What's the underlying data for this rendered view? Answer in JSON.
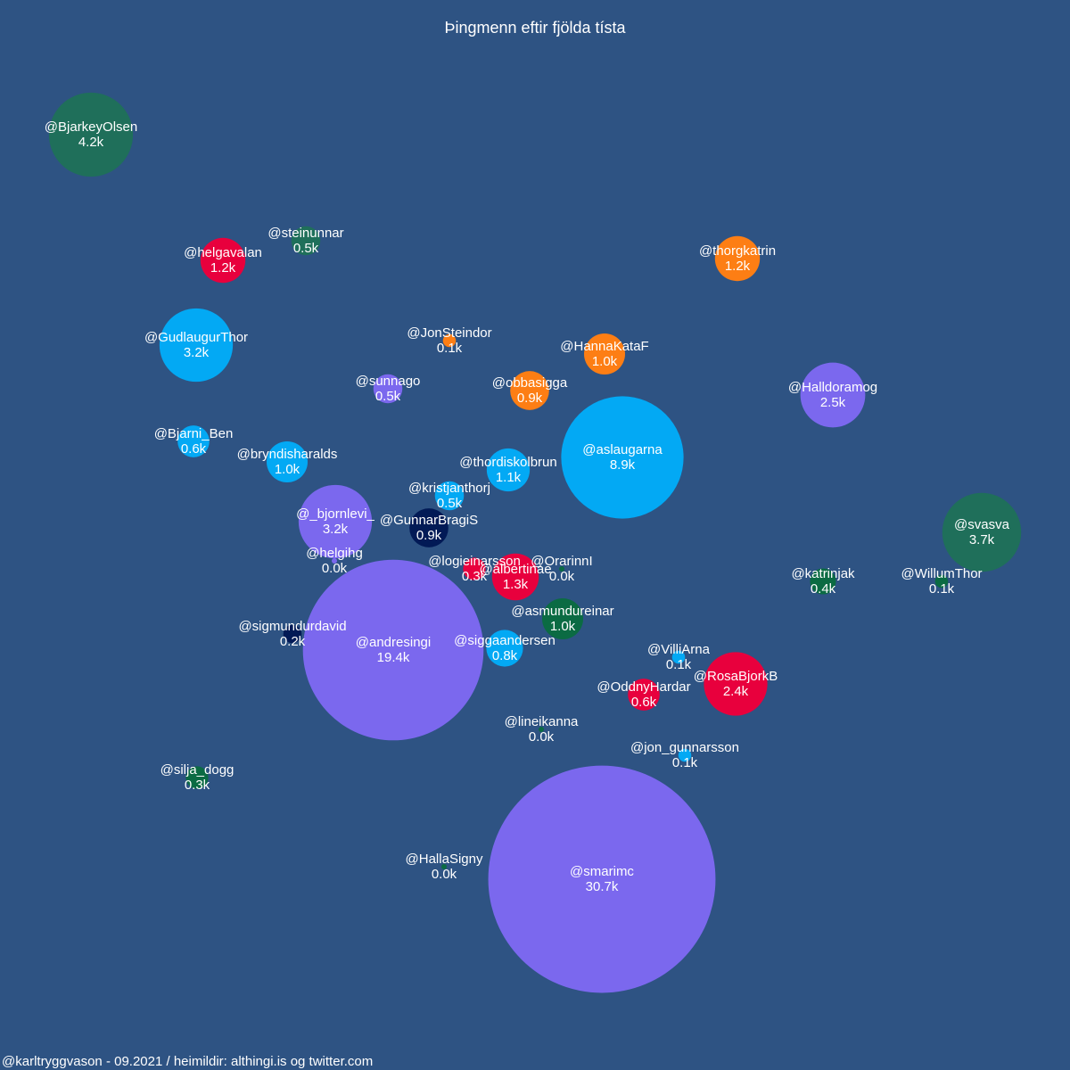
{
  "title": "Þingmenn eftir fjölda tísta",
  "footer": "@karltryggvason - 09.2021 / heimildir: althingi.is og twitter.com",
  "colors": {
    "background": "#2e5383",
    "purple": "#7b68ee",
    "light_blue": "#03a9f4",
    "dark_green": "#1f6f5a",
    "green": "#0b6b43",
    "red": "#e8003d",
    "orange": "#fd7e14",
    "navy": "#021a56"
  },
  "chart_data": {
    "type": "bubble",
    "title": "Þingmenn eftir fjölda tísta",
    "value_unit": "k",
    "points": [
      {
        "handle": "@BjarkeyOlsen",
        "value": 4.2,
        "label": "4.2k",
        "color": "dark_green"
      },
      {
        "handle": "@steinunnar",
        "value": 0.5,
        "label": "0.5k",
        "color": "dark_green"
      },
      {
        "handle": "@helgavalan",
        "value": 1.2,
        "label": "1.2k",
        "color": "red"
      },
      {
        "handle": "@thorgkatrin",
        "value": 1.2,
        "label": "1.2k",
        "color": "orange"
      },
      {
        "handle": "@GudlaugurThor",
        "value": 3.2,
        "label": "3.2k",
        "color": "light_blue"
      },
      {
        "handle": "@JonSteindor",
        "value": 0.1,
        "label": "0.1k",
        "color": "orange"
      },
      {
        "handle": "@HannaKataF",
        "value": 1.0,
        "label": "1.0k",
        "color": "orange"
      },
      {
        "handle": "@sunnago",
        "value": 0.5,
        "label": "0.5k",
        "color": "purple"
      },
      {
        "handle": "@obbasigga",
        "value": 0.9,
        "label": "0.9k",
        "color": "orange"
      },
      {
        "handle": "@Halldoramog",
        "value": 2.5,
        "label": "2.5k",
        "color": "purple"
      },
      {
        "handle": "@Bjarni_Ben",
        "value": 0.6,
        "label": "0.6k",
        "color": "light_blue"
      },
      {
        "handle": "@bryndisharalds",
        "value": 1.0,
        "label": "1.0k",
        "color": "light_blue"
      },
      {
        "handle": "@aslaugarna",
        "value": 8.9,
        "label": "8.9k",
        "color": "light_blue"
      },
      {
        "handle": "@thordiskolbrun",
        "value": 1.1,
        "label": "1.1k",
        "color": "light_blue"
      },
      {
        "handle": "@kristjanthorj",
        "value": 0.5,
        "label": "0.5k",
        "color": "light_blue"
      },
      {
        "handle": "@_bjornlevi_",
        "value": 3.2,
        "label": "3.2k",
        "color": "purple"
      },
      {
        "handle": "@GunnarBragiS",
        "value": 0.9,
        "label": "0.9k",
        "color": "navy"
      },
      {
        "handle": "@svasva",
        "value": 3.7,
        "label": "3.7k",
        "color": "dark_green"
      },
      {
        "handle": "@helgihg",
        "value": 0.0,
        "label": "0.0k",
        "color": "purple"
      },
      {
        "handle": "@logieinarsson",
        "value": 0.3,
        "label": "0.3k",
        "color": "red"
      },
      {
        "handle": "@albertinae",
        "value": 1.3,
        "label": "1.3k",
        "color": "red"
      },
      {
        "handle": "@OrarinnI",
        "value": 0.0,
        "label": "0.0k",
        "color": "green"
      },
      {
        "handle": "@katrinjak",
        "value": 0.4,
        "label": "0.4k",
        "color": "green"
      },
      {
        "handle": "@WillumThor",
        "value": 0.1,
        "label": "0.1k",
        "color": "green"
      },
      {
        "handle": "@asmundureinar",
        "value": 1.0,
        "label": "1.0k",
        "color": "green"
      },
      {
        "handle": "@sigmundurdavid",
        "value": 0.2,
        "label": "0.2k",
        "color": "navy"
      },
      {
        "handle": "@andresingi",
        "value": 19.4,
        "label": "19.4k",
        "color": "purple"
      },
      {
        "handle": "@siggaandersen",
        "value": 0.8,
        "label": "0.8k",
        "color": "light_blue"
      },
      {
        "handle": "@VilliArna",
        "value": 0.1,
        "label": "0.1k",
        "color": "light_blue"
      },
      {
        "handle": "@RosaBjorkB",
        "value": 2.4,
        "label": "2.4k",
        "color": "red"
      },
      {
        "handle": "@OddnyHardar",
        "value": 0.6,
        "label": "0.6k",
        "color": "red"
      },
      {
        "handle": "@lineikanna",
        "value": 0.0,
        "label": "0.0k",
        "color": "green"
      },
      {
        "handle": "@jon_gunnarsson",
        "value": 0.1,
        "label": "0.1k",
        "color": "light_blue"
      },
      {
        "handle": "@silja_dogg",
        "value": 0.3,
        "label": "0.3k",
        "color": "green"
      },
      {
        "handle": "@HallaSigny",
        "value": 0.0,
        "label": "0.0k",
        "color": "green"
      },
      {
        "handle": "@smarimc",
        "value": 30.7,
        "label": "30.7k",
        "color": "purple"
      }
    ]
  }
}
